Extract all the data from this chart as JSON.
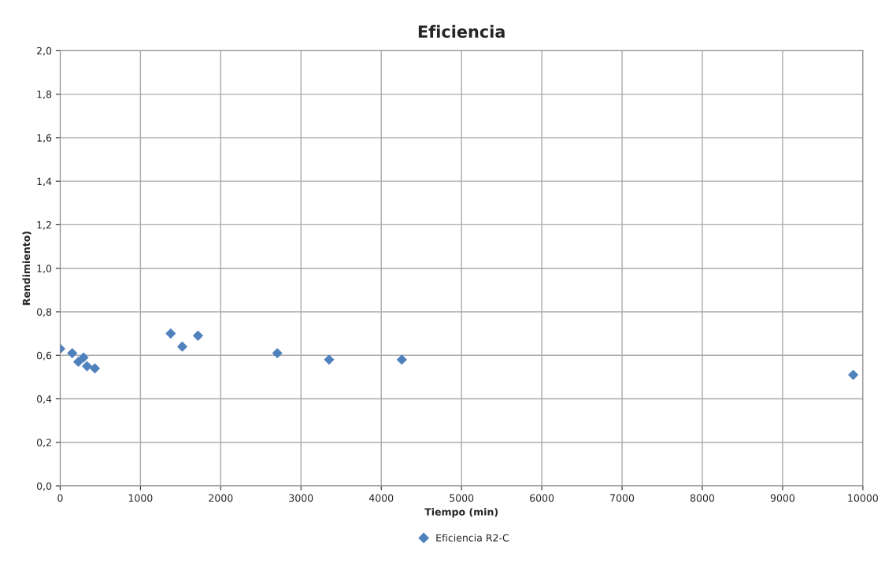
{
  "chart_data": {
    "type": "scatter",
    "title": "Eficiencia",
    "xlabel": "Tiempo (min)",
    "ylabel": "Rendimiento)",
    "x": [
      0,
      150,
      226,
      291,
      334,
      432,
      1377,
      1521,
      1717,
      2705,
      3350,
      4256,
      9880
    ],
    "series": [
      {
        "name": "Eficiencia R2-C",
        "color": "#4f81bd",
        "values": [
          0.63,
          0.61,
          0.57,
          0.59,
          0.55,
          0.54,
          0.7,
          0.64,
          0.69,
          0.61,
          0.58,
          0.58,
          0.51
        ]
      }
    ],
    "xlim": [
      0,
      10000
    ],
    "xticks": [
      0,
      1000,
      2000,
      3000,
      4000,
      5000,
      6000,
      7000,
      8000,
      9000,
      10000
    ],
    "ylim": [
      0,
      2
    ],
    "yticks": [
      {
        "value": 0,
        "label": "0,0"
      },
      {
        "value": 0.2,
        "label": "0,2"
      },
      {
        "value": 0.4,
        "label": "0,4"
      },
      {
        "value": 0.6,
        "label": "0,6"
      },
      {
        "value": 0.8,
        "label": "0,8"
      },
      {
        "value": 1.0,
        "label": "1,0"
      },
      {
        "value": 1.2,
        "label": "1,2"
      },
      {
        "value": 1.4,
        "label": "1,4"
      },
      {
        "value": 1.6,
        "label": "1,6"
      },
      {
        "value": 1.8,
        "label": "1,8"
      },
      {
        "value": 2.0,
        "label": "2,0"
      }
    ],
    "grid": true,
    "legend": "bottom",
    "marker": "diamond"
  }
}
